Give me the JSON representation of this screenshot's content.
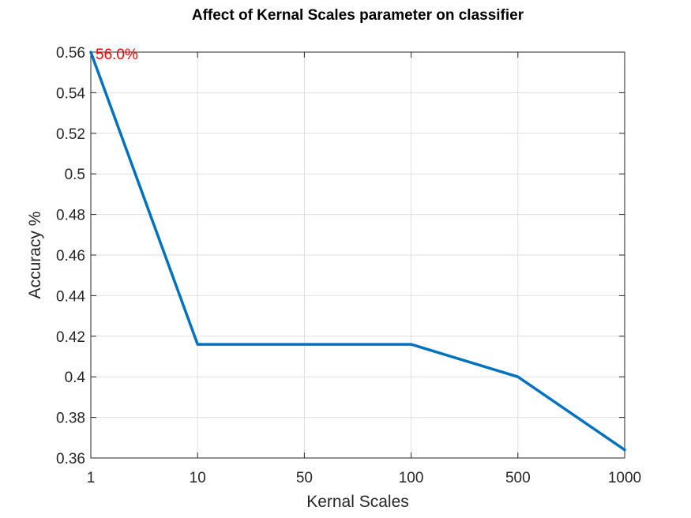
{
  "chart_data": {
    "type": "line",
    "title": "Affect of Kernal Scales parameter on classifier",
    "xlabel": "Kernal Scales",
    "ylabel": "Accuracy %",
    "categories": [
      "1",
      "10",
      "50",
      "100",
      "500",
      "1000"
    ],
    "series": [
      {
        "values": [
          0.56,
          0.416,
          0.416,
          0.416,
          0.4,
          0.364
        ],
        "color": "#0072BD"
      }
    ],
    "ylim": [
      0.36,
      0.56
    ],
    "yticks": [
      "0.36",
      "0.38",
      "0.4",
      "0.42",
      "0.44",
      "0.46",
      "0.48",
      "0.5",
      "0.52",
      "0.54",
      "0.56"
    ],
    "grid": true,
    "annotation": {
      "text": "56.0%",
      "color": "#ff0000",
      "category_index": 0,
      "value": 0.56
    }
  }
}
